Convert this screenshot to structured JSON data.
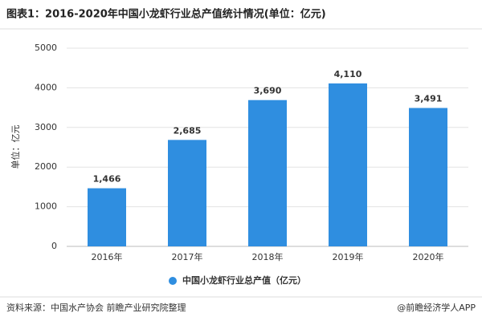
{
  "chart_data": {
    "type": "bar",
    "title": "图表1：2016-2020年中国小龙虾行业总产值统计情况(单位：亿元)",
    "y_label": "单位：亿元",
    "categories": [
      "2016年",
      "2017年",
      "2018年",
      "2019年",
      "2020年"
    ],
    "series": [
      {
        "name": "中国小龙虾行业总产值（亿元）",
        "color": "#2f8ee0",
        "values": [
          1466,
          2685,
          3690,
          4110,
          3491
        ],
        "value_labels": [
          "1,466",
          "2,685",
          "3,690",
          "4,110",
          "3,491"
        ]
      }
    ],
    "ylim": [
      0,
      5000
    ],
    "yticks": [
      0,
      1000,
      2000,
      3000,
      4000,
      5000
    ],
    "grid": true,
    "legend": "bottom",
    "source": "资料来源：中国水产协会 前瞻产业研究院整理",
    "credit": "@前瞻经济学人APP"
  }
}
